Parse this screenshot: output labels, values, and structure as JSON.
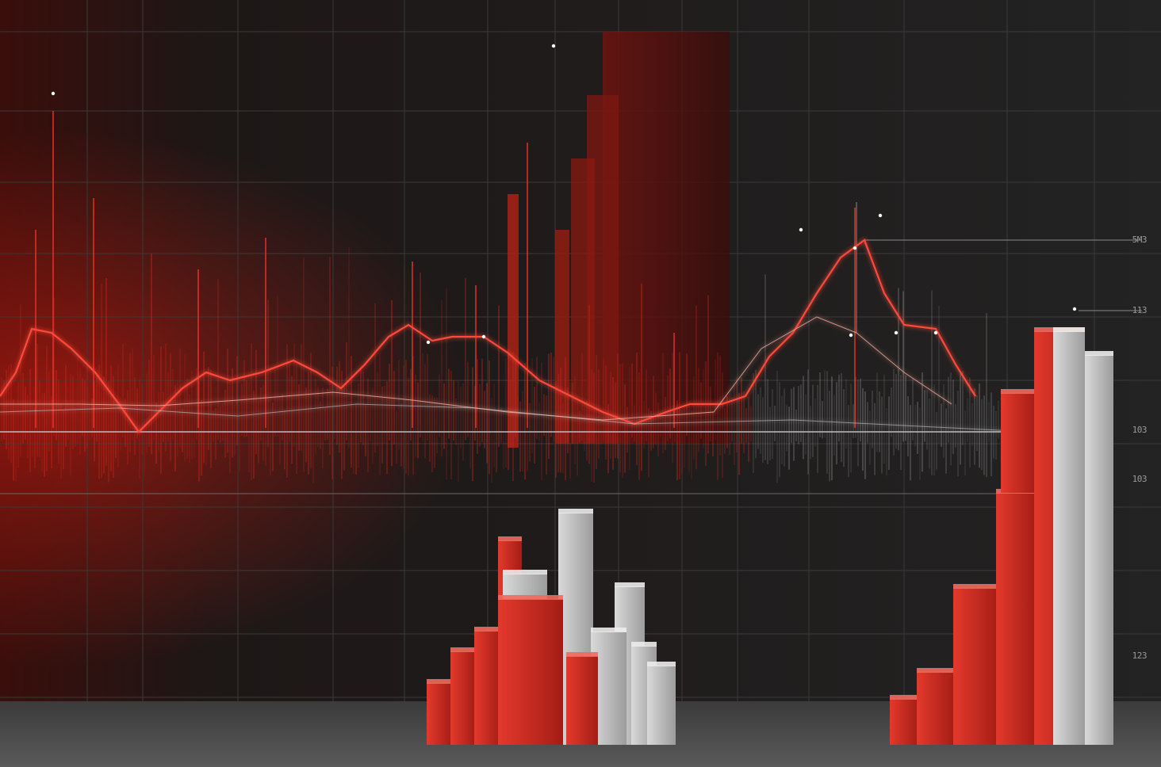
{
  "scene": {
    "description_free": true,
    "palette": {
      "background": "#1a1a1a",
      "grid": "#3a3a3a",
      "red_primary": "#d42a1e",
      "red_dark": "#7a1510",
      "grey_bar": "#bdbdbd",
      "floor": "#4a4a4a"
    }
  },
  "axis_labels": [
    "5M3",
    "113",
    "103",
    "103",
    "123"
  ]
}
